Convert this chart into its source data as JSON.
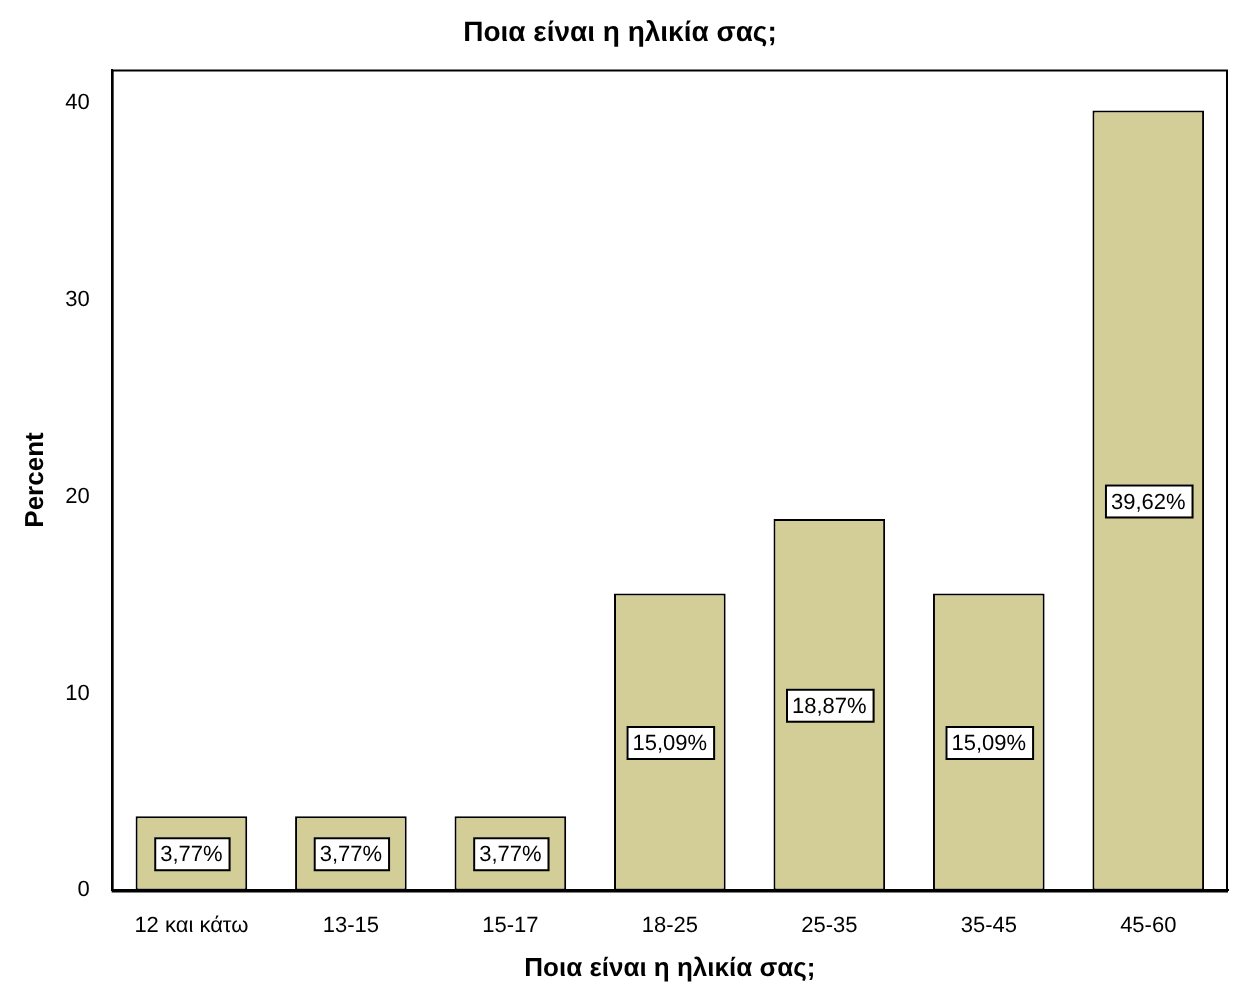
{
  "chart_data": {
    "type": "bar",
    "title": "Ποια είναι η ηλικία σας;",
    "xlabel": "Ποια είναι η ηλικία σας;",
    "ylabel": "Percent",
    "categories": [
      "12 και κάτω",
      "13-15",
      "15-17",
      "18-25",
      "25-35",
      "35-45",
      "45-60"
    ],
    "values": [
      3.77,
      3.77,
      3.77,
      15.09,
      18.87,
      15.09,
      39.62
    ],
    "value_labels": [
      "3,77%",
      "3,77%",
      "3,77%",
      "15,09%",
      "18,87%",
      "15,09%",
      "39,62%"
    ],
    "color": "#d3ce97",
    "ylim": [
      0,
      41.7
    ],
    "yticks": [
      0,
      10,
      20,
      30,
      40
    ],
    "grid": false,
    "legend": false
  }
}
